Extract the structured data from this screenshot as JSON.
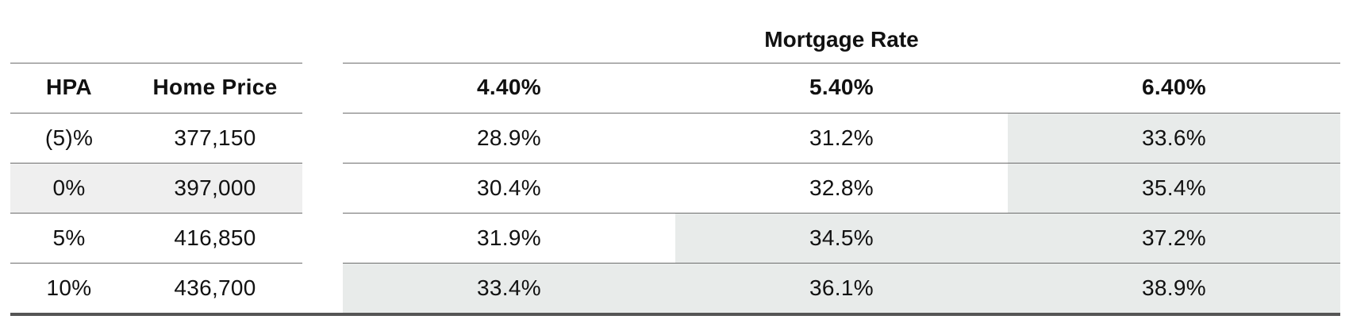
{
  "chart_data": {
    "type": "table",
    "title": "",
    "group_header": "Mortgage Rate",
    "row_headers": [
      "HPA",
      "Home Price"
    ],
    "columns": [
      "4.40%",
      "5.40%",
      "6.40%"
    ],
    "rows": [
      {
        "hpa": "(5)%",
        "home_price": "377,150",
        "values": [
          "28.9%",
          "31.2%",
          "33.6%"
        ],
        "shaded": [
          false,
          false,
          true
        ]
      },
      {
        "hpa": "0%",
        "home_price": "397,000",
        "values": [
          "30.4%",
          "32.8%",
          "35.4%"
        ],
        "shaded": [
          false,
          false,
          true
        ],
        "row_highlight": true
      },
      {
        "hpa": "5%",
        "home_price": "416,850",
        "values": [
          "31.9%",
          "34.5%",
          "37.2%"
        ],
        "shaded": [
          false,
          true,
          true
        ]
      },
      {
        "hpa": "10%",
        "home_price": "436,700",
        "values": [
          "33.4%",
          "36.1%",
          "38.9%"
        ],
        "shaded": [
          true,
          true,
          true
        ]
      }
    ]
  },
  "colors": {
    "shaded_cell": "#e8ebea",
    "highlight_row": "#efefef",
    "rule": "#6e6e6e",
    "bottom_rule": "#555555"
  }
}
